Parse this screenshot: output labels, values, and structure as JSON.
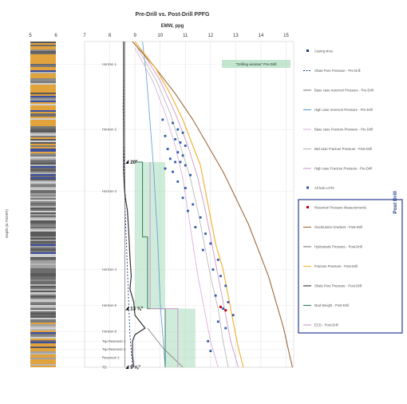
{
  "chart_data": {
    "type": "line",
    "title": "Pre-Drill vs. Post-Drill PPFG",
    "subtitle": "EMW, ppg",
    "ylabel": "Depth (m TVDRT)",
    "lith_axis": {
      "ticks": [
        "5",
        "6"
      ],
      "range": [
        5,
        6
      ]
    },
    "x_axis": {
      "ticks": [
        "7",
        "8",
        "9",
        "10",
        "11",
        "12",
        "13",
        "14",
        "15"
      ],
      "range": [
        7,
        15.3
      ]
    },
    "depth_range": [
      0,
      100
    ],
    "horizons": [
      {
        "label": "Horizon 1",
        "depth": 7
      },
      {
        "label": "Horizon 2",
        "depth": 27
      },
      {
        "label": "Horizon 3",
        "depth": 46
      },
      {
        "label": "Horizon 4",
        "depth": 70
      },
      {
        "label": "Horizon 5",
        "depth": 81
      },
      {
        "label": "Horizon 6",
        "depth": 89
      },
      {
        "label": "Top Reservoir 1",
        "depth": 92
      },
      {
        "label": "Top Reservoir 2",
        "depth": 94.5
      },
      {
        "label": "Reservoir 3",
        "depth": 97
      },
      {
        "label": "TD",
        "depth": 100
      }
    ],
    "casing_labels": [
      {
        "label": "20\"",
        "depth": 37
      },
      {
        "label": "13 ⅜\"",
        "depth": 82
      },
      {
        "label": "9 ⅝\"",
        "depth": 100
      }
    ],
    "drilling_window_label": "\"Drilling window\" Pre-Drill",
    "post_drill_label": "Post Drill",
    "legend": [
      {
        "label": "Casing shoe",
        "color": "#1f3d7a",
        "style": "marker"
      },
      {
        "label": "Shale Pore Pressure - Pre-Drill",
        "color": "#1f3d7a",
        "style": "dashed"
      },
      {
        "label": "Base case reservoir Pressure - Pre-Drill",
        "color": "#7f7f7f",
        "style": "solid"
      },
      {
        "label": "High case reservoir Pressure - Pre-Drill",
        "color": "#5b9bd5",
        "style": "solid"
      },
      {
        "label": "Base case Fracture Pressure - Pre-Drill",
        "color": "#d9b3d9",
        "style": "solid"
      },
      {
        "label": "Mid case Fracture Pressure - Post-Drill",
        "color": "#b3b3b3",
        "style": "solid"
      },
      {
        "label": "High case Fracture Pressure - Pre-Drill",
        "color": "#cc99cc",
        "style": "solid"
      },
      {
        "label": "All hole LOTs",
        "color": "#2e5aa8",
        "style": "square"
      },
      {
        "label": "Reservoir Pressure Measurements",
        "color": "#c00000",
        "style": "marker"
      },
      {
        "label": "Overburden Gradient - Post-Drill",
        "color": "#9c6a3c",
        "style": "solid"
      },
      {
        "label": "Hydrostatic Pressure - Post-Drill",
        "color": "#7f7f7f",
        "style": "solid"
      },
      {
        "label": "Fracture Pressure - Post-Drill",
        "color": "#f0b43c",
        "style": "solid"
      },
      {
        "label": "Shale Pore Pressure - Post-Drill",
        "color": "#333333",
        "style": "solid"
      },
      {
        "label": "Mud Weight - Post-Drill",
        "color": "#2f7f5f",
        "style": "solid"
      },
      {
        "label": "ECD - Post-Drill",
        "color": "#cc99cc",
        "style": "solid"
      }
    ],
    "series": [
      {
        "name": "Shale Pore Pressure - Pre-Drill",
        "color": "#1f3d7a",
        "dash": "2,2",
        "width": 0.9,
        "points": [
          [
            8.55,
            0
          ],
          [
            8.55,
            10
          ],
          [
            8.53,
            20
          ],
          [
            8.55,
            30
          ],
          [
            8.58,
            38
          ],
          [
            8.6,
            50
          ],
          [
            8.65,
            60
          ],
          [
            8.7,
            70
          ],
          [
            8.75,
            80
          ],
          [
            8.8,
            90
          ],
          [
            8.9,
            100
          ]
        ]
      },
      {
        "name": "Base case reservoir Pressure - Pre-Drill",
        "color": "#7f7f7f",
        "dash": "",
        "width": 0.8,
        "points": [
          [
            9.5,
            88
          ],
          [
            9.8,
            91
          ],
          [
            10.1,
            94
          ],
          [
            10.5,
            97
          ],
          [
            10.9,
            100
          ]
        ]
      },
      {
        "name": "High case reservoir Pressure - Pre-Drill",
        "color": "#5b9bd5",
        "dash": "",
        "width": 0.8,
        "points": [
          [
            9.3,
            0
          ],
          [
            9.45,
            10
          ],
          [
            9.55,
            20
          ],
          [
            9.65,
            30
          ],
          [
            9.75,
            40
          ],
          [
            9.82,
            50
          ],
          [
            9.9,
            60
          ],
          [
            9.95,
            70
          ],
          [
            10.0,
            80
          ],
          [
            10.1,
            90
          ],
          [
            10.2,
            100
          ]
        ]
      },
      {
        "name": "Base case Fracture Pressure - Pre-Drill",
        "color": "#d9b3d9",
        "dash": "",
        "width": 0.9,
        "points": [
          [
            9.0,
            2
          ],
          [
            9.7,
            12
          ],
          [
            10.2,
            22
          ],
          [
            10.6,
            32
          ],
          [
            10.9,
            42
          ],
          [
            11.1,
            52
          ],
          [
            11.3,
            62
          ],
          [
            11.5,
            72
          ],
          [
            11.75,
            82
          ],
          [
            12.0,
            92
          ],
          [
            12.3,
            100
          ]
        ]
      },
      {
        "name": "Mid case Fracture Pressure - Post-Drill",
        "color": "#b3b3b3",
        "dash": "",
        "width": 0.8,
        "points": [
          [
            9.1,
            2
          ],
          [
            9.85,
            12
          ],
          [
            10.4,
            22
          ],
          [
            10.8,
            32
          ],
          [
            11.2,
            42
          ],
          [
            11.5,
            52
          ],
          [
            11.75,
            62
          ],
          [
            12.0,
            72
          ],
          [
            12.3,
            82
          ],
          [
            12.5,
            92
          ],
          [
            12.7,
            100
          ]
        ]
      },
      {
        "name": "High case Fracture Pressure - Pre-Drill",
        "color": "#cc99cc",
        "dash": "",
        "width": 0.9,
        "points": [
          [
            9.2,
            2
          ],
          [
            10.0,
            12
          ],
          [
            10.6,
            22
          ],
          [
            11.1,
            32
          ],
          [
            11.5,
            42
          ],
          [
            11.8,
            52
          ],
          [
            12.05,
            62
          ],
          [
            12.3,
            72
          ],
          [
            12.55,
            82
          ],
          [
            12.8,
            92
          ],
          [
            13.1,
            100
          ]
        ]
      },
      {
        "name": "Overburden Gradient - Post-Drill",
        "color": "#9c6a3c",
        "dash": "",
        "width": 1.1,
        "points": [
          [
            8.9,
            0
          ],
          [
            9.8,
            8
          ],
          [
            10.6,
            16
          ],
          [
            11.3,
            24
          ],
          [
            11.9,
            32
          ],
          [
            12.5,
            40
          ],
          [
            13.0,
            48
          ],
          [
            13.5,
            56
          ],
          [
            13.9,
            64
          ],
          [
            14.3,
            72
          ],
          [
            14.6,
            80
          ],
          [
            14.9,
            88
          ],
          [
            15.1,
            95
          ],
          [
            15.25,
            100
          ]
        ]
      },
      {
        "name": "Hydrostatic Pressure - Post-Drill",
        "color": "#7f7f7f",
        "dash": "",
        "width": 0.8,
        "points": [
          [
            8.6,
            0
          ],
          [
            8.6,
            100
          ]
        ]
      },
      {
        "name": "Fracture Pressure - Post-Drill",
        "color": "#f0b43c",
        "dash": "",
        "width": 1.2,
        "points": [
          [
            9.0,
            0
          ],
          [
            9.8,
            8
          ],
          [
            10.4,
            16
          ],
          [
            10.9,
            24
          ],
          [
            11.3,
            32
          ],
          [
            11.6,
            38
          ],
          [
            11.8,
            46
          ],
          [
            12.0,
            54
          ],
          [
            12.2,
            62
          ],
          [
            12.5,
            70
          ],
          [
            12.7,
            78
          ],
          [
            12.9,
            86
          ],
          [
            13.1,
            94
          ],
          [
            13.3,
            100
          ]
        ]
      },
      {
        "name": "Shale Pore Pressure - Post-Drill",
        "color": "#333333",
        "dash": "",
        "width": 1.2,
        "points": [
          [
            8.55,
            0
          ],
          [
            8.55,
            30
          ],
          [
            8.55,
            40
          ],
          [
            8.58,
            45
          ],
          [
            8.62,
            48
          ],
          [
            8.7,
            52
          ],
          [
            8.75,
            58
          ],
          [
            8.8,
            66
          ],
          [
            8.85,
            72
          ],
          [
            8.8,
            76
          ],
          [
            8.95,
            80
          ],
          [
            9.0,
            84
          ],
          [
            9.2,
            86
          ],
          [
            9.4,
            88
          ],
          [
            9.0,
            90
          ],
          [
            8.9,
            92
          ],
          [
            8.9,
            96
          ],
          [
            8.95,
            100
          ]
        ]
      },
      {
        "name": "Mud Weight - Post-Drill",
        "color": "#2f7f5f",
        "dash": "",
        "width": 1.0,
        "points": [
          [
            9.0,
            37
          ],
          [
            9.3,
            37
          ],
          [
            9.3,
            60
          ],
          [
            9.5,
            60
          ],
          [
            9.5,
            82
          ],
          [
            10.2,
            82
          ],
          [
            10.2,
            100
          ]
        ]
      },
      {
        "name": "ECD - Post-Drill",
        "color": "#cc99cc",
        "dash": "",
        "width": 1.0,
        "points": [
          [
            9.6,
            37
          ],
          [
            9.6,
            82
          ],
          [
            10.7,
            82
          ],
          [
            10.7,
            100
          ]
        ]
      }
    ],
    "drilling_window": [
      {
        "x0": 9.0,
        "x1": 10.2,
        "d0": 37,
        "d1": 82
      },
      {
        "x0": 10.2,
        "x1": 11.4,
        "d0": 82,
        "d1": 100
      }
    ],
    "lots": [
      [
        10.1,
        24
      ],
      [
        10.5,
        25
      ],
      [
        10.7,
        27
      ],
      [
        10.9,
        28
      ],
      [
        10.2,
        29
      ],
      [
        10.6,
        30
      ],
      [
        10.8,
        31
      ],
      [
        11.0,
        32
      ],
      [
        10.3,
        33
      ],
      [
        10.7,
        34
      ],
      [
        10.9,
        35
      ],
      [
        10.4,
        36
      ],
      [
        10.6,
        37
      ],
      [
        10.8,
        37
      ],
      [
        11.0,
        38
      ],
      [
        10.2,
        39
      ],
      [
        10.5,
        40
      ],
      [
        11.2,
        41
      ],
      [
        10.7,
        43
      ],
      [
        11.0,
        45
      ],
      [
        10.9,
        48
      ],
      [
        11.3,
        50
      ],
      [
        11.1,
        52
      ],
      [
        11.6,
        54
      ],
      [
        11.4,
        57
      ],
      [
        11.8,
        59
      ],
      [
        12.0,
        62
      ],
      [
        11.7,
        64
      ],
      [
        12.3,
        67
      ],
      [
        12.1,
        70
      ],
      [
        12.4,
        72
      ],
      [
        12.6,
        75
      ],
      [
        12.2,
        78
      ],
      [
        12.7,
        80
      ],
      [
        12.5,
        82
      ],
      [
        12.9,
        84
      ],
      [
        12.3,
        86
      ],
      [
        12.6,
        88
      ],
      [
        11.9,
        92
      ],
      [
        12.0,
        95
      ]
    ],
    "reservoir_measurements": [
      [
        12.4,
        81.5
      ],
      [
        12.6,
        82.5
      ]
    ]
  }
}
